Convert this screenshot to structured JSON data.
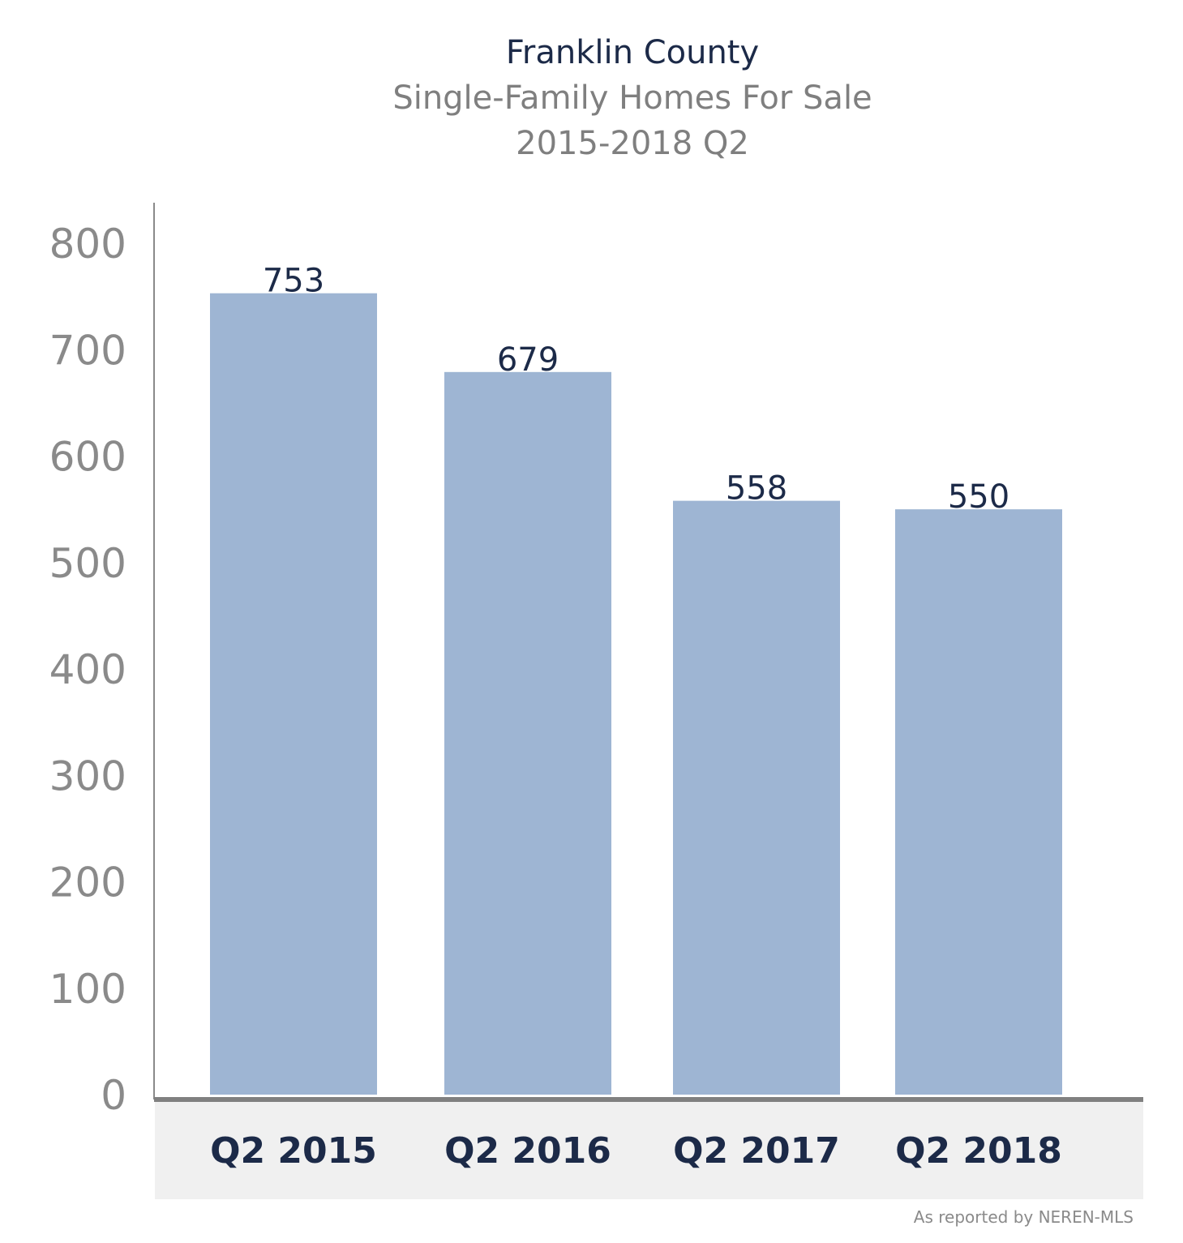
{
  "chart_data": {
    "type": "bar",
    "title": "Franklin County",
    "subtitle_lines": [
      "Single-Family Homes For Sale",
      "2015-2018 Q2"
    ],
    "categories": [
      "Q2 2015",
      "Q2 2016",
      "Q2 2017",
      "Q2 2018"
    ],
    "values": [
      753,
      679,
      558,
      550
    ],
    "data_labels": [
      "753",
      "679",
      "558",
      "550"
    ],
    "yticks": [
      0,
      100,
      200,
      300,
      400,
      500,
      600,
      700,
      800
    ],
    "ylim": [
      0,
      800
    ],
    "grid": false,
    "legend": "none",
    "bar_color": "#9eb5d3",
    "source_note": "As reported by NEREN-MLS"
  }
}
